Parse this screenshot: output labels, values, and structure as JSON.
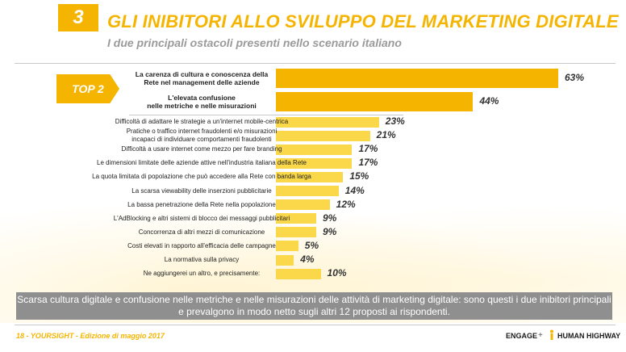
{
  "header": {
    "section_number": "3",
    "title": "GLI INIBITORI ALLO SVILUPPO DEL MARKETING DIGITALE",
    "subtitle": "I due principali ostacoli presenti nello scenario italiano"
  },
  "top2_badge": "TOP 2",
  "chart_data": {
    "type": "bar",
    "orientation": "horizontal",
    "value_suffix": "%",
    "xlim": [
      0,
      63
    ],
    "top_group": [
      {
        "label_lines": [
          "La carenza di cultura e conoscenza della",
          "Rete nel management delle aziende"
        ],
        "value": 63,
        "label": "63%"
      },
      {
        "label_lines": [
          "L'elevata confusione",
          "nelle metriche e nelle misurazioni"
        ],
        "value": 44,
        "label": "44%"
      }
    ],
    "others": [
      {
        "label_lines": [
          "Difficoltà di adattare le strategie a un'internet mobile-centrica"
        ],
        "value": 23,
        "label": "23%"
      },
      {
        "label_lines": [
          "Pratiche o traffico internet fraudolenti e/o misurazioni",
          "incapaci di individuare comportamenti fraudolenti"
        ],
        "value": 21,
        "label": "21%"
      },
      {
        "label_lines": [
          "Difficoltà a usare internet come mezzo per fare branding"
        ],
        "value": 17,
        "label": "17%"
      },
      {
        "label_lines": [
          "Le dimensioni limitate delle aziende attive nell'industria italiana della Rete"
        ],
        "value": 17,
        "label": "17%"
      },
      {
        "label_lines": [
          "La quota limitata di popolazione che può accedere alla Rete con banda larga"
        ],
        "value": 15,
        "label": "15%"
      },
      {
        "label_lines": [
          "La scarsa viewability delle inserzioni pubblicitarie"
        ],
        "value": 14,
        "label": "14%"
      },
      {
        "label_lines": [
          "La bassa penetrazione della Rete nella popolazione"
        ],
        "value": 12,
        "label": "12%"
      },
      {
        "label_lines": [
          "L'AdBlocking e altri sistemi di blocco dei messaggi pubblicitari"
        ],
        "value": 9,
        "label": "9%"
      },
      {
        "label_lines": [
          "Concorrenza di altri mezzi di comunicazione"
        ],
        "value": 9,
        "label": "9%"
      },
      {
        "label_lines": [
          "Costi elevati in rapporto all'efficacia delle campagne"
        ],
        "value": 5,
        "label": "5%"
      },
      {
        "label_lines": [
          "La normativa sulla privacy"
        ],
        "value": 4,
        "label": "4%"
      },
      {
        "label_lines": [
          "Ne aggiungerei un altro, e precisamente:"
        ],
        "value": 10,
        "label": "10%"
      }
    ]
  },
  "summary_text": "Scarsa cultura digitale e confusione nelle metriche e nelle misurazioni delle attività di marketing digitale: sono questi i due inibitori principali e prevalgono in modo netto sugli altri 12 proposti ai rispondenti.",
  "footer": {
    "left": "18 - YOURSIGHT - Edizione di maggio 2017",
    "logo_engage": "ENGAGE",
    "plus": "+",
    "logo_hh": "HUMAN HIGHWAY"
  },
  "colors": {
    "accent": "#f5b400",
    "bar_light": "#fbd84a",
    "summary_bg": "#8f8f8f"
  }
}
